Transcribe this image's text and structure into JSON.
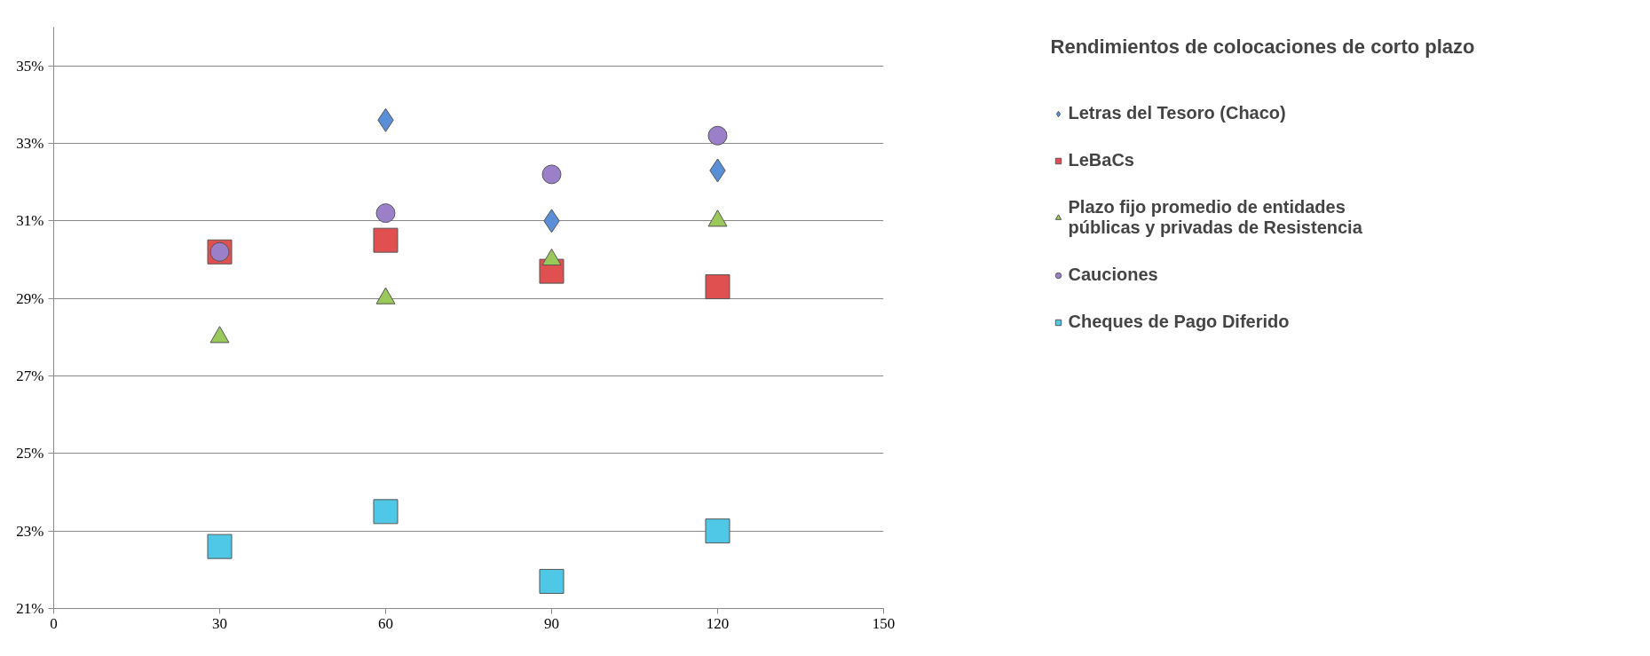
{
  "chart_data": {
    "type": "scatter",
    "legend_title": "Rendimientos de colocaciones de corto plazo",
    "x": [
      30,
      60,
      90,
      120
    ],
    "series": [
      {
        "name": "Letras del Tesoro (Chaco)",
        "color": "#5a8fd8",
        "marker": "diamond",
        "x": [
          60,
          90,
          120
        ],
        "values": [
          33.6,
          31.0,
          32.3
        ]
      },
      {
        "name": "LeBaCs",
        "color": "#e05050",
        "marker": "square",
        "values": [
          30.2,
          30.5,
          29.7,
          29.3
        ]
      },
      {
        "name": "Plazo fijo promedio de entidades públicas y privadas de Resistencia",
        "color": "#9bc85a",
        "marker": "triangle",
        "values": [
          28.0,
          29.0,
          30.0,
          31.0
        ]
      },
      {
        "name": "Cauciones",
        "color": "#9b7fc8",
        "marker": "circle",
        "values": [
          30.2,
          31.2,
          32.2,
          33.2
        ]
      },
      {
        "name": "Cheques de Pago Diferido",
        "color": "#4fc8e8",
        "marker": "square",
        "values": [
          22.6,
          23.5,
          21.7,
          23.0
        ]
      }
    ],
    "xlim": [
      0,
      150
    ],
    "xticks": [
      0,
      30,
      60,
      90,
      120,
      150
    ],
    "ylim": [
      21,
      36
    ],
    "yticks": [
      {
        "value": 21,
        "label": "21%"
      },
      {
        "value": 23,
        "label": "23%"
      },
      {
        "value": 25,
        "label": "25%"
      },
      {
        "value": 27,
        "label": "27%"
      },
      {
        "value": 29,
        "label": "29%"
      },
      {
        "value": 31,
        "label": "31%"
      },
      {
        "value": 33,
        "label": "33%"
      },
      {
        "value": 35,
        "label": "35%"
      }
    ],
    "grid": "y",
    "legend": "right"
  }
}
